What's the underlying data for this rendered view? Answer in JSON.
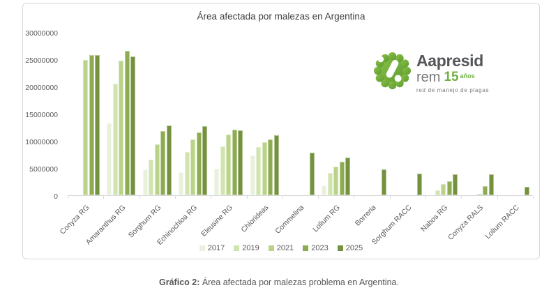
{
  "chart": {
    "title": "Área afectada por malezas en Argentina"
  },
  "caption": {
    "label": "Gráfico 2:",
    "text": " Área afectada por malezas problema en Argentina."
  },
  "logo": {
    "brand": "Aapresid",
    "sub_brand": "rem",
    "anniversary_number": "15",
    "anniversary_suffix": "años",
    "tagline": "red de manejo de plagas",
    "badge_color": "#72b043",
    "badge_gradient_top": "#89c247",
    "badge_gradient_bottom": "#5d9a30"
  },
  "chart_data": {
    "type": "bar",
    "title": "Área afectada por malezas en Argentina",
    "xlabel": "",
    "ylabel": "",
    "ylim": [
      0,
      30000000
    ],
    "yticks": [
      0,
      5000000,
      10000000,
      15000000,
      20000000,
      25000000,
      30000000
    ],
    "grid": false,
    "legend_position": "bottom",
    "axis_color": "#d9d9d9",
    "label_color": "#595959",
    "categories": [
      "Conyza RG",
      "Amaranthus RG",
      "Sorghum RG",
      "Echinochloa RG",
      "Eleusine RG",
      "Chlorideas",
      "Commelina",
      "Lolium RG",
      "Borreria",
      "Sorghum RACC",
      "Nabos RG",
      "Conyza RALS",
      "Lolium RACC"
    ],
    "series": [
      {
        "name": "2017",
        "color": "#e9f1dc",
        "values": [
          null,
          13200000,
          4700000,
          4200000,
          4900000,
          7300000,
          null,
          1800000,
          null,
          null,
          null,
          null,
          null
        ]
      },
      {
        "name": "2019",
        "color": "#d1e3af",
        "values": [
          null,
          20500000,
          6500000,
          7900000,
          9000000,
          8800000,
          null,
          4100000,
          null,
          null,
          900000,
          null,
          null
        ]
      },
      {
        "name": "2021",
        "color": "#b9d488",
        "values": [
          24900000,
          24800000,
          9300000,
          10300000,
          11200000,
          9800000,
          null,
          5300000,
          null,
          null,
          2100000,
          300000,
          null
        ]
      },
      {
        "name": "2023",
        "color": "#8dac51",
        "values": [
          25800000,
          26500000,
          11800000,
          11500000,
          12100000,
          10300000,
          null,
          6200000,
          null,
          null,
          2600000,
          1700000,
          null
        ]
      },
      {
        "name": "2025",
        "color": "#74923e",
        "values": [
          25800000,
          25500000,
          12800000,
          12700000,
          11900000,
          11000000,
          7800000,
          6900000,
          4800000,
          4000000,
          3900000,
          3900000,
          1600000
        ]
      }
    ]
  }
}
